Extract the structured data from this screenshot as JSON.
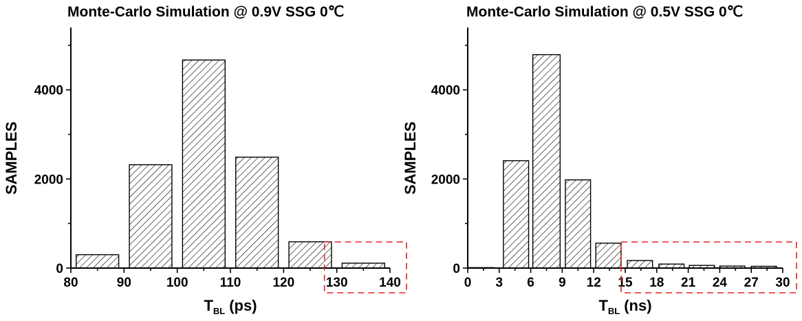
{
  "chart_data": [
    {
      "type": "bar",
      "title": "Monte-Carlo Simulation @ 0.9V SSG 0℃",
      "xlabel_main": "T",
      "xlabel_sub": "BL",
      "xlabel_unit": "(ps)",
      "ylabel": "SAMPLES",
      "xlim": [
        80,
        140
      ],
      "ylim": [
        0,
        5400
      ],
      "xticks": [
        80,
        90,
        100,
        110,
        120,
        130,
        140
      ],
      "yticks": [
        0,
        2000,
        4000
      ],
      "bins": [
        {
          "x0": 81,
          "x1": 89,
          "value": 300
        },
        {
          "x0": 91,
          "x1": 99,
          "value": 2320
        },
        {
          "x0": 101,
          "x1": 109,
          "value": 4670
        },
        {
          "x0": 111,
          "x1": 119,
          "value": 2490
        },
        {
          "x0": 121,
          "x1": 129,
          "value": 590
        },
        {
          "x0": 131,
          "x1": 139,
          "value": 110
        }
      ],
      "highlight_range": [
        130,
        140
      ],
      "highlight_color": "#e62020"
    },
    {
      "type": "bar",
      "title": "Monte-Carlo Simulation @ 0.5V SSG 0℃",
      "xlabel_main": "T",
      "xlabel_sub": "BL",
      "xlabel_unit": "(ns)",
      "ylabel": "SAMPLES",
      "xlim": [
        0,
        30
      ],
      "ylim": [
        0,
        5400
      ],
      "xticks": [
        0,
        3,
        6,
        9,
        12,
        15,
        18,
        21,
        24,
        27,
        30
      ],
      "yticks": [
        0,
        2000,
        4000
      ],
      "bins": [
        {
          "x0": 0,
          "x1": 2.5,
          "value": 10
        },
        {
          "x0": 3.4,
          "x1": 5.8,
          "value": 2410
        },
        {
          "x0": 6.2,
          "x1": 8.8,
          "value": 4790
        },
        {
          "x0": 9.3,
          "x1": 11.7,
          "value": 1980
        },
        {
          "x0": 12.2,
          "x1": 14.6,
          "value": 560
        },
        {
          "x0": 15.2,
          "x1": 17.6,
          "value": 170
        },
        {
          "x0": 18.2,
          "x1": 20.6,
          "value": 90
        },
        {
          "x0": 21.1,
          "x1": 23.5,
          "value": 60
        },
        {
          "x0": 24.0,
          "x1": 26.4,
          "value": 45
        },
        {
          "x0": 27.0,
          "x1": 29.4,
          "value": 40
        }
      ],
      "highlight_range": [
        15,
        30
      ],
      "highlight_color": "#e62020"
    }
  ]
}
